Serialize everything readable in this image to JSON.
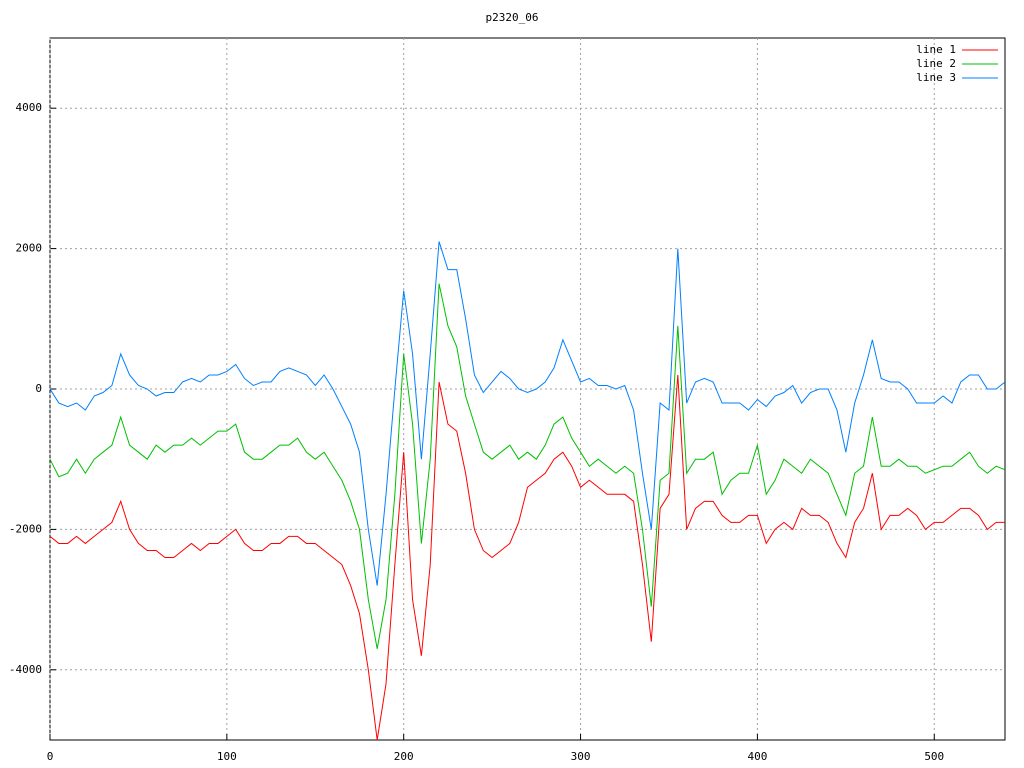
{
  "chart_data": {
    "type": "line",
    "title": "p2320_06",
    "x": [
      0,
      5,
      10,
      15,
      20,
      25,
      30,
      35,
      40,
      45,
      50,
      55,
      60,
      65,
      70,
      75,
      80,
      85,
      90,
      95,
      100,
      105,
      110,
      115,
      120,
      125,
      130,
      135,
      140,
      145,
      150,
      155,
      160,
      165,
      170,
      175,
      180,
      185,
      190,
      195,
      200,
      205,
      210,
      215,
      220,
      225,
      230,
      235,
      240,
      245,
      250,
      255,
      260,
      265,
      270,
      275,
      280,
      285,
      290,
      295,
      300,
      305,
      310,
      315,
      320,
      325,
      330,
      335,
      340,
      345,
      350,
      355,
      360,
      365,
      370,
      375,
      380,
      385,
      390,
      395,
      400,
      405,
      410,
      415,
      420,
      425,
      430,
      435,
      440,
      445,
      450,
      455,
      460,
      465,
      470,
      475,
      480,
      485,
      490,
      495,
      500,
      505,
      510,
      515,
      520,
      525,
      530,
      535,
      540
    ],
    "series": [
      {
        "name": "line 1",
        "color": "#ff0000",
        "values": [
          -2100,
          -2200,
          -2200,
          -2100,
          -2200,
          -2100,
          -2000,
          -1900,
          -1600,
          -2000,
          -2200,
          -2300,
          -2300,
          -2400,
          -2400,
          -2300,
          -2200,
          -2300,
          -2200,
          -2200,
          -2100,
          -2000,
          -2200,
          -2300,
          -2300,
          -2200,
          -2200,
          -2100,
          -2100,
          -2200,
          -2200,
          -2300,
          -2400,
          -2500,
          -2800,
          -3200,
          -4000,
          -5000,
          -4200,
          -2500,
          -900,
          -3000,
          -3800,
          -2500,
          100,
          -500,
          -600,
          -1200,
          -2000,
          -2300,
          -2400,
          -2300,
          -2200,
          -1900,
          -1400,
          -1300,
          -1200,
          -1000,
          -900,
          -1100,
          -1400,
          -1300,
          -1400,
          -1500,
          -1500,
          -1500,
          -1600,
          -2500,
          -3600,
          -1700,
          -1500,
          200,
          -2000,
          -1700,
          -1600,
          -1600,
          -1800,
          -1900,
          -1900,
          -1800,
          -1800,
          -2200,
          -2000,
          -1900,
          -2000,
          -1700,
          -1800,
          -1800,
          -1900,
          -2200,
          -2400,
          -1900,
          -1700,
          -1200,
          -2000,
          -1800,
          -1800,
          -1700,
          -1800,
          -2000,
          -1900,
          -1900,
          -1800,
          -1700,
          -1700,
          -1800,
          -2000,
          -1900,
          -1900
        ]
      },
      {
        "name": "line 2",
        "color": "#00c000",
        "values": [
          -1000,
          -1250,
          -1200,
          -1000,
          -1200,
          -1000,
          -900,
          -800,
          -400,
          -800,
          -900,
          -1000,
          -800,
          -900,
          -800,
          -800,
          -700,
          -800,
          -700,
          -600,
          -600,
          -500,
          -900,
          -1000,
          -1000,
          -900,
          -800,
          -800,
          -700,
          -900,
          -1000,
          -900,
          -1100,
          -1300,
          -1600,
          -2000,
          -3000,
          -3700,
          -3000,
          -1500,
          500,
          -500,
          -2200,
          -1000,
          1500,
          900,
          600,
          -100,
          -500,
          -900,
          -1000,
          -900,
          -800,
          -1000,
          -900,
          -1000,
          -800,
          -500,
          -400,
          -700,
          -900,
          -1100,
          -1000,
          -1100,
          -1200,
          -1100,
          -1200,
          -2000,
          -3100,
          -1300,
          -1200,
          900,
          -1200,
          -1000,
          -1000,
          -900,
          -1500,
          -1300,
          -1200,
          -1200,
          -800,
          -1500,
          -1300,
          -1000,
          -1100,
          -1200,
          -1000,
          -1100,
          -1200,
          -1500,
          -1800,
          -1200,
          -1100,
          -400,
          -1100,
          -1100,
          -1000,
          -1100,
          -1100,
          -1200,
          -1150,
          -1100,
          -1100,
          -1000,
          -900,
          -1100,
          -1200,
          -1100,
          -1150
        ]
      },
      {
        "name": "line 3",
        "color": "#0080ff",
        "values": [
          0,
          -200,
          -250,
          -200,
          -300,
          -100,
          -50,
          50,
          500,
          200,
          50,
          0,
          -100,
          -50,
          -50,
          100,
          150,
          100,
          200,
          200,
          250,
          350,
          150,
          50,
          100,
          100,
          250,
          300,
          250,
          200,
          50,
          200,
          0,
          -250,
          -500,
          -900,
          -2000,
          -2800,
          -1500,
          0,
          1400,
          500,
          -1000,
          500,
          2100,
          1700,
          1700,
          1000,
          200,
          -50,
          100,
          250,
          150,
          0,
          -50,
          0,
          100,
          300,
          700,
          400,
          100,
          150,
          50,
          50,
          0,
          50,
          -300,
          -1200,
          -2000,
          -200,
          -300,
          2000,
          -200,
          100,
          150,
          100,
          -200,
          -200,
          -200,
          -300,
          -150,
          -250,
          -100,
          -50,
          50,
          -200,
          -50,
          0,
          0,
          -300,
          -900,
          -200,
          200,
          700,
          150,
          100,
          100,
          0,
          -200,
          -200,
          -200,
          -100,
          -200,
          100,
          200,
          200,
          0,
          0,
          100
        ]
      }
    ],
    "xlim": [
      0,
      540
    ],
    "ylim": [
      -5000,
      5000
    ],
    "xticks": [
      0,
      100,
      200,
      300,
      400,
      500
    ],
    "yticks": [
      -4000,
      -2000,
      0,
      2000,
      4000
    ],
    "grid": true,
    "legend": "top-right"
  }
}
